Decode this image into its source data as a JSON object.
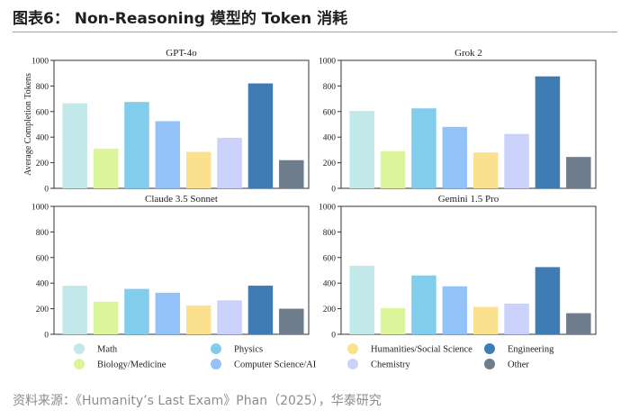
{
  "header": {
    "title": "图表6： Non-Reasoning 模型的 Token 消耗"
  },
  "footer": {
    "source": "资料来源：《Humanity’s Last Exam》Phan（2025），华泰研究"
  },
  "chart_data": [
    {
      "type": "bar",
      "title": "GPT-4o",
      "ylabel": "Average Completion Tokens",
      "ylim": [
        0,
        1000
      ],
      "yticks": [
        0,
        200,
        400,
        600,
        800,
        1000
      ],
      "categories": [
        "Math",
        "Biology/Medicine",
        "Physics",
        "Computer Science/AI",
        "Humanities/Social Science",
        "Chemistry",
        "Engineering",
        "Other"
      ],
      "values": [
        665,
        310,
        675,
        525,
        285,
        395,
        820,
        220
      ]
    },
    {
      "type": "bar",
      "title": "Grok 2",
      "ylabel": "",
      "ylim": [
        0,
        1000
      ],
      "yticks": [
        0,
        200,
        400,
        600,
        800,
        1000
      ],
      "categories": [
        "Math",
        "Biology/Medicine",
        "Physics",
        "Computer Science/AI",
        "Humanities/Social Science",
        "Chemistry",
        "Engineering",
        "Other"
      ],
      "values": [
        605,
        290,
        625,
        480,
        280,
        425,
        875,
        245
      ]
    },
    {
      "type": "bar",
      "title": "Claude 3.5 Sonnet",
      "ylabel": "",
      "ylim": [
        0,
        1000
      ],
      "yticks": [
        0,
        200,
        400,
        600,
        800,
        1000
      ],
      "categories": [
        "Math",
        "Biology/Medicine",
        "Physics",
        "Computer Science/AI",
        "Humanities/Social Science",
        "Chemistry",
        "Engineering",
        "Other"
      ],
      "values": [
        380,
        255,
        355,
        325,
        225,
        265,
        380,
        200
      ]
    },
    {
      "type": "bar",
      "title": "Gemini 1.5 Pro",
      "ylabel": "",
      "ylim": [
        0,
        1000
      ],
      "yticks": [
        0,
        200,
        400,
        600,
        800,
        1000
      ],
      "categories": [
        "Math",
        "Biology/Medicine",
        "Physics",
        "Computer Science/AI",
        "Humanities/Social Science",
        "Chemistry",
        "Engineering",
        "Other"
      ],
      "values": [
        535,
        205,
        460,
        375,
        215,
        240,
        525,
        165
      ]
    }
  ],
  "legend": {
    "items": [
      {
        "label": "Math",
        "color": "#c2e8ea"
      },
      {
        "label": "Biology/Medicine",
        "color": "#dcf59a"
      },
      {
        "label": "Physics",
        "color": "#82cdec"
      },
      {
        "label": "Computer Science/AI",
        "color": "#93c2f8"
      },
      {
        "label": "Humanities/Social Science",
        "color": "#fbe18e"
      },
      {
        "label": "Chemistry",
        "color": "#cad1fa"
      },
      {
        "label": "Engineering",
        "color": "#3f7cb3"
      },
      {
        "label": "Other",
        "color": "#6e7c8c"
      }
    ]
  },
  "colors": {
    "bars": [
      "#c2e8ea",
      "#dcf59a",
      "#82cdec",
      "#93c2f8",
      "#fbe18e",
      "#cad1fa",
      "#3f7cb3",
      "#6e7c8c"
    ],
    "frame": "#333333",
    "rule": "#8aa6c8"
  }
}
